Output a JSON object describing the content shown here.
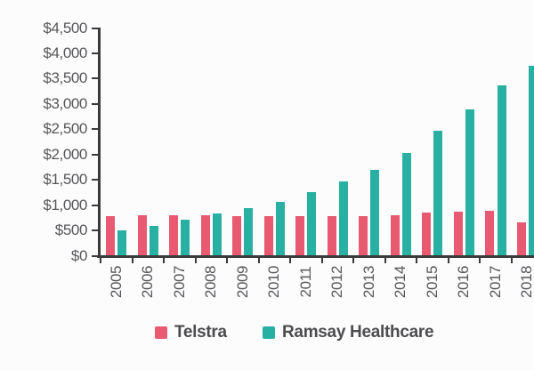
{
  "colors": {
    "telstra": "#e85a71",
    "ramsay": "#28b0a3",
    "axis": "#3a3a3c",
    "tick_label": "#57575a",
    "legend_text": "#4c4c4e",
    "background": "#fcfcfd"
  },
  "chart_data": {
    "type": "bar",
    "title": "",
    "xlabel": "",
    "ylabel": "",
    "categories": [
      "2005",
      "2006",
      "2007",
      "2008",
      "2009",
      "2010",
      "2011",
      "2012",
      "2013",
      "2014",
      "2015",
      "2016",
      "2017",
      "2018"
    ],
    "series": [
      {
        "name": "Telstra",
        "color": "#e85a71",
        "values": [
          770,
          790,
          795,
          785,
          780,
          775,
          770,
          775,
          780,
          795,
          845,
          870,
          880,
          655
        ]
      },
      {
        "name": "Ramsay Healthcare",
        "color": "#28b0a3",
        "values": [
          490,
          580,
          705,
          830,
          930,
          1060,
          1250,
          1460,
          1695,
          2030,
          2460,
          2890,
          3360,
          3740
        ]
      }
    ],
    "ylim": [
      0,
      4500
    ],
    "ytick_step": 500,
    "ytick_labels": [
      "$0",
      "$500",
      "$1,000",
      "$1,500",
      "$2,000",
      "$2,500",
      "$3,000",
      "$3,500",
      "$4,000",
      "$4,500"
    ],
    "grid": false,
    "legend_position": "bottom",
    "x_labels_rotated": true,
    "note_last_group_clipped_right": true
  },
  "legend": {
    "items": [
      {
        "label": "Telstra",
        "color": "#e85a71"
      },
      {
        "label": "Ramsay Healthcare",
        "color": "#28b0a3"
      }
    ]
  }
}
